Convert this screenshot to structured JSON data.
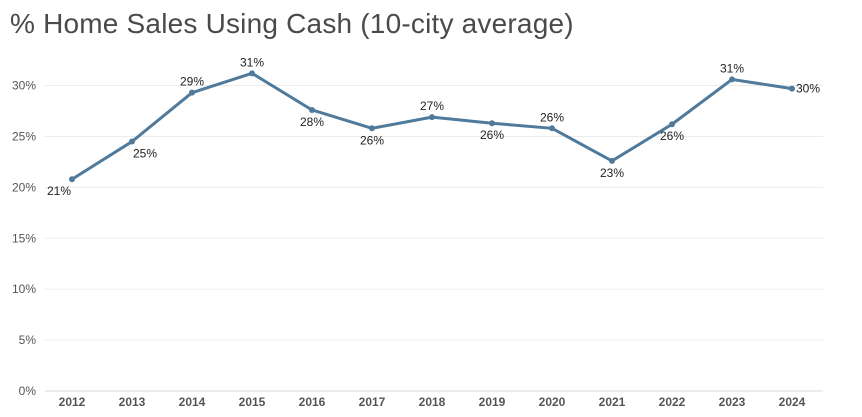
{
  "chart_data": {
    "type": "line",
    "title": "% Home Sales Using Cash (10-city average)",
    "xlabel": "",
    "ylabel": "",
    "x": [
      "2012",
      "2013",
      "2014",
      "2015",
      "2016",
      "2017",
      "2018",
      "2019",
      "2020",
      "2021",
      "2022",
      "2023",
      "2024"
    ],
    "series": [
      {
        "name": "% Home Sales Using Cash",
        "values": [
          20.8,
          24.5,
          29.3,
          31.2,
          27.6,
          25.8,
          26.9,
          26.3,
          25.8,
          22.6,
          26.2,
          30.6,
          29.7
        ],
        "labels": [
          "21%",
          "25%",
          "29%",
          "31%",
          "28%",
          "26%",
          "27%",
          "26%",
          "26%",
          "23%",
          "26%",
          "31%",
          "30%"
        ],
        "label_positions": [
          "below",
          "below",
          "above",
          "above",
          "below",
          "below",
          "above",
          "below",
          "above",
          "below",
          "below",
          "above",
          "right"
        ]
      }
    ],
    "ylim": [
      0,
      33
    ],
    "yticks": [
      0,
      5,
      10,
      15,
      20,
      25,
      30
    ],
    "ytick_labels": [
      "0%",
      "5%",
      "10%",
      "15%",
      "20%",
      "25%",
      "30%"
    ],
    "grid": true,
    "line_color": "#4f7a9b"
  }
}
